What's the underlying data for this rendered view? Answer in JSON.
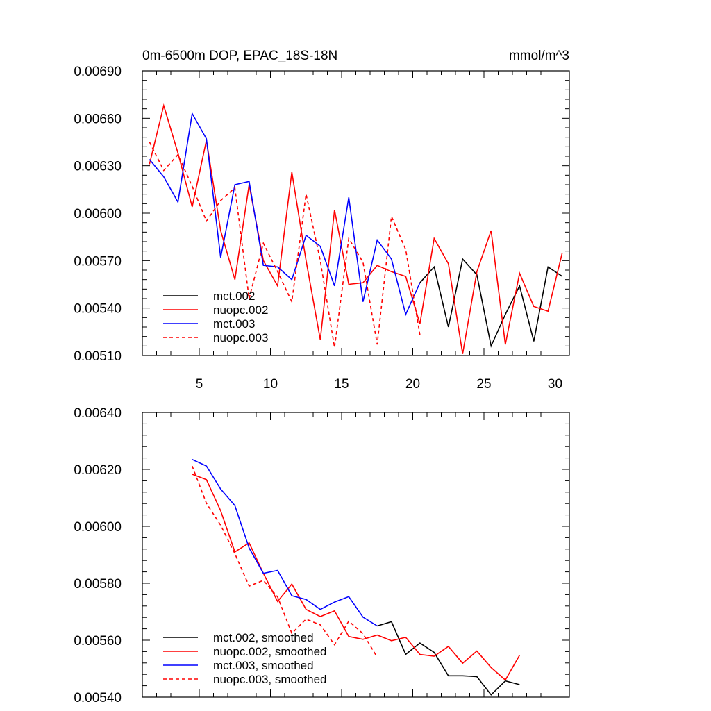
{
  "chart_data": [
    {
      "type": "line",
      "title": "0m-6500m DOP, EPAC_18S-18N",
      "units": "mmol/m^3",
      "xlabel": "",
      "ylabel": "",
      "xlim": [
        1,
        31
      ],
      "ylim": [
        0.0051,
        0.0069
      ],
      "x_ticks": [
        "5",
        "10",
        "15",
        "20",
        "25",
        "30"
      ],
      "y_ticks": [
        "0.00510",
        "0.00540",
        "0.00570",
        "0.00600",
        "0.00630",
        "0.00660",
        "0.00690"
      ],
      "legend": "bottom-left",
      "series": [
        {
          "name": "mct.002",
          "color": "#000000",
          "dash": false,
          "x": [
            20.5,
            21.5,
            22.5,
            23.5,
            24.5,
            25.5,
            26.5,
            27.5,
            28.5,
            29.5,
            30.5
          ],
          "y": [
            0.00556,
            0.00566,
            0.00528,
            0.00571,
            0.00561,
            0.00516,
            0.00536,
            0.00554,
            0.00519,
            0.00566,
            0.0056
          ]
        },
        {
          "name": "nuopc.002",
          "color": "#ff0000",
          "dash": false,
          "x": [
            1.5,
            2.5,
            3.5,
            4.5,
            5.5,
            6.5,
            7.5,
            8.5,
            9.5,
            10.5,
            11.5,
            12.5,
            13.5,
            14.5,
            15.5,
            16.5,
            17.5,
            18.5,
            19.5,
            20.5,
            21.5,
            22.5,
            23.5,
            24.5,
            25.5,
            26.5,
            27.5,
            28.5,
            29.5,
            30.5
          ],
          "y": [
            0.00631,
            0.00668,
            0.00638,
            0.00604,
            0.00646,
            0.00589,
            0.00558,
            0.00618,
            0.0057,
            0.00554,
            0.00626,
            0.0057,
            0.0052,
            0.00602,
            0.00555,
            0.00556,
            0.00567,
            0.00563,
            0.0056,
            0.0053,
            0.00584,
            0.00568,
            0.00511,
            0.00563,
            0.00589,
            0.00517,
            0.00562,
            0.00541,
            0.00538,
            0.00575
          ]
        },
        {
          "name": "mct.003",
          "color": "#0000ff",
          "dash": false,
          "x": [
            1.5,
            2.5,
            3.5,
            4.5,
            5.5,
            6.5,
            7.5,
            8.5,
            9.5,
            10.5,
            11.5,
            12.5,
            13.5,
            14.5,
            15.5,
            16.5,
            17.5,
            18.5,
            19.5,
            20.5
          ],
          "y": [
            0.00634,
            0.00623,
            0.00607,
            0.00663,
            0.00647,
            0.00572,
            0.00618,
            0.0062,
            0.00567,
            0.00566,
            0.00558,
            0.00586,
            0.00579,
            0.00554,
            0.0061,
            0.00544,
            0.00583,
            0.00571,
            0.00536,
            0.00556
          ]
        },
        {
          "name": "nuopc.003",
          "color": "#ff0000",
          "dash": true,
          "x": [
            1.5,
            2.5,
            3.5,
            4.5,
            5.5,
            6.5,
            7.5,
            8.5,
            9.5,
            10.5,
            11.5,
            12.5,
            13.5,
            14.5,
            15.5,
            16.5,
            17.5,
            18.5,
            19.5,
            20.5
          ],
          "y": [
            0.00645,
            0.00627,
            0.00637,
            0.00617,
            0.00595,
            0.00608,
            0.00616,
            0.00546,
            0.00581,
            0.00563,
            0.00544,
            0.00612,
            0.0057,
            0.00515,
            0.00584,
            0.00569,
            0.00517,
            0.00598,
            0.00577,
            0.00523
          ]
        }
      ]
    },
    {
      "type": "line",
      "title": "",
      "xlabel": "",
      "ylabel": "",
      "xlim": [
        1,
        31
      ],
      "ylim": [
        0.0054,
        0.0064
      ],
      "x_ticks": [],
      "y_ticks": [
        "0.00540",
        "0.00560",
        "0.00580",
        "0.00600",
        "0.00620",
        "0.00640"
      ],
      "legend": "bottom-left",
      "series": [
        {
          "name": "mct.002, smoothed",
          "color": "#000000",
          "dash": false,
          "x": [
            17.5,
            18.5,
            19.5,
            20.5,
            21.5,
            22.5,
            23.5,
            24.5,
            25.5,
            26.5,
            27.5
          ],
          "y": [
            0.00565,
            0.005665,
            0.00555,
            0.00559,
            0.005557,
            0.005475,
            0.005475,
            0.005472,
            0.005408,
            0.005457,
            0.005444
          ]
        },
        {
          "name": "nuopc.002, smoothed",
          "color": "#ff0000",
          "dash": false,
          "x": [
            4.5,
            5.5,
            6.5,
            7.5,
            8.5,
            9.5,
            10.5,
            11.5,
            12.5,
            13.5,
            14.5,
            15.5,
            16.5,
            17.5,
            18.5,
            19.5,
            20.5,
            21.5,
            22.5,
            23.5,
            24.5,
            25.5,
            26.5,
            27.5
          ],
          "y": [
            0.006183,
            0.006164,
            0.006055,
            0.00591,
            0.005942,
            0.005835,
            0.005736,
            0.005797,
            0.005708,
            0.005683,
            0.005703,
            0.005613,
            0.005603,
            0.005618,
            0.005598,
            0.00561,
            0.00555,
            0.005544,
            0.005578,
            0.005519,
            0.005562,
            0.005504,
            0.00546,
            0.005547
          ]
        },
        {
          "name": "mct.003, smoothed",
          "color": "#0000ff",
          "dash": false,
          "x": [
            4.5,
            5.5,
            6.5,
            7.5,
            8.5,
            9.5,
            10.5,
            11.5,
            12.5,
            13.5,
            14.5,
            15.5,
            16.5,
            17.5
          ],
          "y": [
            0.006235,
            0.006212,
            0.006131,
            0.006073,
            0.005924,
            0.005835,
            0.005845,
            0.005756,
            0.005743,
            0.005708,
            0.005734,
            0.005753,
            0.005681,
            0.00565
          ]
        },
        {
          "name": "nuopc.003, smoothed",
          "color": "#ff0000",
          "dash": true,
          "x": [
            4.5,
            5.5,
            6.5,
            7.5,
            8.5,
            9.5,
            10.5,
            11.5,
            12.5,
            13.5,
            14.5,
            15.5,
            16.5,
            17.5
          ],
          "y": [
            0.006212,
            0.006081,
            0.006004,
            0.005904,
            0.00579,
            0.00581,
            0.005752,
            0.005624,
            0.005674,
            0.005654,
            0.005584,
            0.005667,
            0.005623,
            0.00554
          ]
        }
      ]
    }
  ]
}
